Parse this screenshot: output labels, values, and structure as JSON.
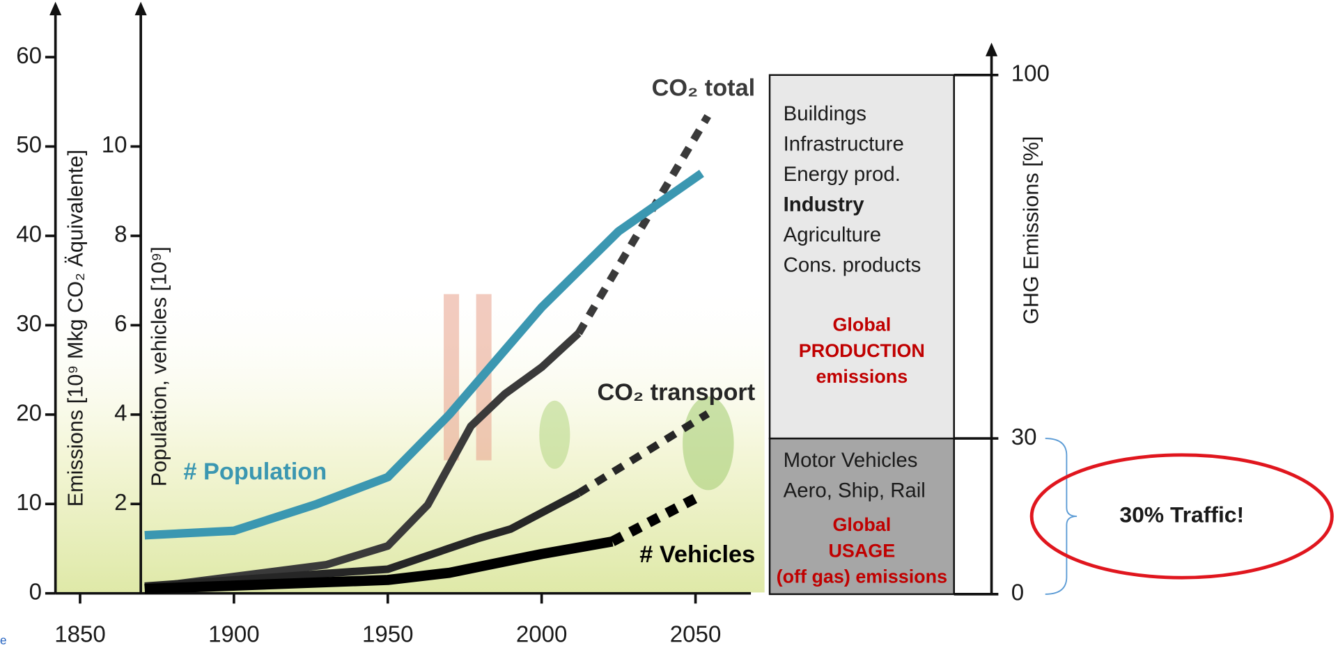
{
  "footer_fragment": "e",
  "chart_data": [
    {
      "type": "line",
      "ylabel": "Emissions [10⁹ Mkg CO₂ Äquivalente]",
      "y2label": "Population, vehicles  [10⁹]",
      "xlim": [
        1842,
        2068
      ],
      "xticks": [
        1850,
        1900,
        1950,
        2000,
        2050
      ],
      "ylim": [
        0,
        60
      ],
      "yticks": [
        0,
        10,
        20,
        30,
        40,
        50,
        60
      ],
      "y2lim": [
        0,
        12
      ],
      "y2ticks": [
        2,
        4,
        6,
        8,
        10
      ],
      "series": [
        {
          "name": "CO₂ total",
          "color": "#3a3a3a",
          "axis": "y",
          "projection_from": 2012,
          "x": [
            1871,
            1930,
            1950,
            1963,
            1977,
            1988,
            2000,
            2012,
            2054
          ],
          "values": [
            0.6,
            3.2,
            5.3,
            9.9,
            18.7,
            22.3,
            25.3,
            29.1,
            53.4
          ]
        },
        {
          "name": "CO₂ transport",
          "color": "#262626",
          "axis": "y",
          "projection_from": 2012,
          "x": [
            1871,
            1950,
            1979,
            1990,
            2012,
            2054
          ],
          "values": [
            0.8,
            2.7,
            6.1,
            7.2,
            11.2,
            20.1
          ]
        },
        {
          "name": "# Population",
          "color": "#3b97b1",
          "axis": "y2",
          "x": [
            1871,
            1900,
            1927,
            1950,
            1970,
            2000,
            2025,
            2052
          ],
          "values": [
            1.3,
            1.4,
            2.0,
            2.6,
            4.0,
            6.4,
            8.1,
            9.4
          ]
        },
        {
          "name": "# Vehicles",
          "color": "#000000",
          "axis": "y2",
          "projection_from": 2023,
          "x": [
            1871,
            1950,
            1970,
            2000,
            2023,
            2052
          ],
          "values": [
            0.1,
            0.3,
            0.46,
            0.88,
            1.16,
            2.2
          ]
        }
      ]
    },
    {
      "type": "stacked_bar",
      "ylabel": "GHG Emissions [%]",
      "ylim": [
        0,
        100
      ],
      "yticks": [
        0,
        30,
        100
      ],
      "label_color": "#c00000",
      "annotation": "30% Traffic!",
      "series": [
        {
          "label": [
            "Global",
            "USAGE",
            "(off gas) emissions"
          ],
          "items": [
            "Motor Vehicles",
            "Aero, Ship, Rail"
          ],
          "values": [
            30
          ],
          "color": "#a6a6a6"
        },
        {
          "label": [
            "Global",
            "PRODUCTION",
            "emissions"
          ],
          "items": [
            "Buildings",
            "Infrastructure",
            "Energy prod.",
            "Industry",
            "Agriculture",
            "Cons. products"
          ],
          "emphasis": [
            3
          ],
          "values": [
            70
          ],
          "color": "#e8e8e8"
        }
      ]
    }
  ]
}
